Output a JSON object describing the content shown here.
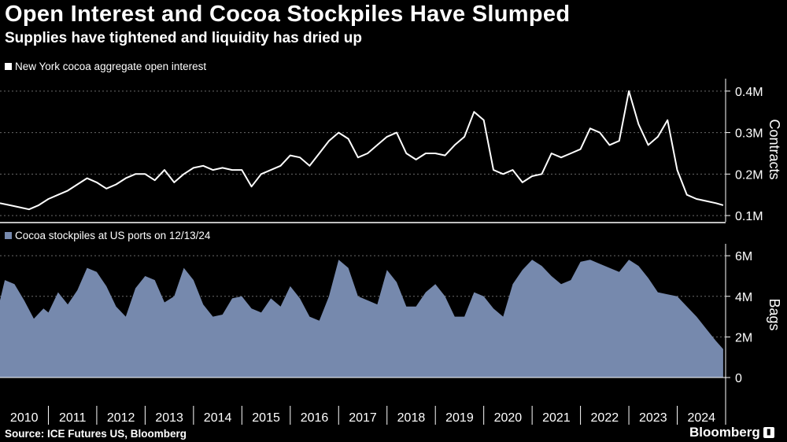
{
  "header": {
    "title": "Open Interest and Cocoa Stockpiles Have Slumped",
    "subtitle": "Supplies have tightened and liquidity has dried up"
  },
  "colors": {
    "background": "#000000",
    "line": "#ffffff",
    "area": "#7689ad",
    "grid": "#6a6a6a"
  },
  "chart_data": [
    {
      "type": "line",
      "series": [
        {
          "name": "New York cocoa aggregate open interest",
          "x": [
            2010.0,
            2010.2,
            2010.4,
            2010.6,
            2010.8,
            2011.0,
            2011.2,
            2011.4,
            2011.6,
            2011.8,
            2012.0,
            2012.2,
            2012.4,
            2012.6,
            2012.8,
            2013.0,
            2013.2,
            2013.4,
            2013.6,
            2013.8,
            2014.0,
            2014.2,
            2014.4,
            2014.6,
            2014.8,
            2015.0,
            2015.2,
            2015.4,
            2015.6,
            2015.8,
            2016.0,
            2016.2,
            2016.4,
            2016.6,
            2016.8,
            2017.0,
            2017.2,
            2017.4,
            2017.6,
            2017.8,
            2018.0,
            2018.2,
            2018.4,
            2018.6,
            2018.8,
            2019.0,
            2019.2,
            2019.4,
            2019.6,
            2019.8,
            2020.0,
            2020.2,
            2020.4,
            2020.6,
            2020.8,
            2021.0,
            2021.2,
            2021.4,
            2021.6,
            2021.8,
            2022.0,
            2022.2,
            2022.4,
            2022.6,
            2022.8,
            2023.0,
            2023.2,
            2023.4,
            2023.6,
            2023.8,
            2024.0,
            2024.2,
            2024.4,
            2024.6,
            2024.8,
            2024.95
          ],
          "y": [
            0.13,
            0.125,
            0.12,
            0.115,
            0.125,
            0.14,
            0.15,
            0.16,
            0.175,
            0.19,
            0.18,
            0.165,
            0.175,
            0.19,
            0.2,
            0.2,
            0.185,
            0.21,
            0.18,
            0.2,
            0.215,
            0.22,
            0.21,
            0.215,
            0.21,
            0.21,
            0.17,
            0.2,
            0.21,
            0.22,
            0.245,
            0.24,
            0.22,
            0.25,
            0.28,
            0.3,
            0.285,
            0.24,
            0.25,
            0.27,
            0.29,
            0.3,
            0.25,
            0.235,
            0.25,
            0.25,
            0.245,
            0.27,
            0.29,
            0.35,
            0.33,
            0.21,
            0.2,
            0.21,
            0.18,
            0.195,
            0.2,
            0.25,
            0.24,
            0.25,
            0.26,
            0.31,
            0.3,
            0.27,
            0.28,
            0.4,
            0.32,
            0.27,
            0.29,
            0.33,
            0.21,
            0.15,
            0.14,
            0.135,
            0.13,
            0.125
          ]
        }
      ],
      "ylabel": "Contracts",
      "yticks": [
        "0.1M",
        "0.2M",
        "0.3M",
        "0.4M"
      ],
      "ytick_values": [
        0.1,
        0.2,
        0.3,
        0.4
      ],
      "ylim": [
        0.085,
        0.43
      ],
      "xlim": [
        2010.0,
        2025.0
      ],
      "legend_position": "top-left",
      "grid": true
    },
    {
      "type": "area",
      "series": [
        {
          "name": "Cocoa stockpiles at US ports on 12/13/24",
          "x": [
            2010.0,
            2010.1,
            2010.3,
            2010.5,
            2010.7,
            2010.9,
            2011.0,
            2011.2,
            2011.4,
            2011.6,
            2011.8,
            2012.0,
            2012.2,
            2012.4,
            2012.6,
            2012.8,
            2013.0,
            2013.2,
            2013.4,
            2013.6,
            2013.8,
            2014.0,
            2014.2,
            2014.4,
            2014.6,
            2014.8,
            2015.0,
            2015.2,
            2015.4,
            2015.6,
            2015.8,
            2016.0,
            2016.2,
            2016.4,
            2016.6,
            2016.8,
            2017.0,
            2017.2,
            2017.4,
            2017.6,
            2017.8,
            2018.0,
            2018.2,
            2018.4,
            2018.6,
            2018.8,
            2019.0,
            2019.2,
            2019.4,
            2019.6,
            2019.8,
            2020.0,
            2020.2,
            2020.4,
            2020.6,
            2020.8,
            2021.0,
            2021.2,
            2021.4,
            2021.6,
            2021.8,
            2022.0,
            2022.2,
            2022.4,
            2022.6,
            2022.8,
            2023.0,
            2023.2,
            2023.4,
            2023.6,
            2023.8,
            2024.0,
            2024.2,
            2024.4,
            2024.6,
            2024.8,
            2024.95
          ],
          "y": [
            3.8,
            4.8,
            4.6,
            3.8,
            2.9,
            3.4,
            3.2,
            4.2,
            3.6,
            4.3,
            5.4,
            5.2,
            4.5,
            3.5,
            3.0,
            4.4,
            5.0,
            4.8,
            3.7,
            4.0,
            5.4,
            4.8,
            3.6,
            3.0,
            3.1,
            3.9,
            4.0,
            3.4,
            3.2,
            3.9,
            3.5,
            4.5,
            3.9,
            3.0,
            2.8,
            4.0,
            5.8,
            5.4,
            4.0,
            3.8,
            3.6,
            5.3,
            4.7,
            3.5,
            3.5,
            4.2,
            4.6,
            4.0,
            3.0,
            3.0,
            4.2,
            4.0,
            3.4,
            3.0,
            4.6,
            5.3,
            5.8,
            5.5,
            5.0,
            4.6,
            4.8,
            5.7,
            5.8,
            5.6,
            5.4,
            5.2,
            5.8,
            5.5,
            4.9,
            4.2,
            4.1,
            4.0,
            3.5,
            3.0,
            2.4,
            1.8,
            1.4
          ],
          "unit": "Bags"
        }
      ],
      "ylabel": "Bags",
      "yticks": [
        "0",
        "2M",
        "4M",
        "6M"
      ],
      "ytick_values": [
        0,
        2,
        4,
        6
      ],
      "ylim": [
        0,
        6.2
      ],
      "xlim": [
        2010.0,
        2025.0
      ],
      "xticks": [
        "2010",
        "2011",
        "2012",
        "2013",
        "2014",
        "2015",
        "2016",
        "2017",
        "2018",
        "2019",
        "2020",
        "2021",
        "2022",
        "2023",
        "2024"
      ],
      "legend_position": "top-left",
      "grid": true
    }
  ],
  "footer": {
    "source": "Source: ICE Futures US, Bloomberg",
    "logo": "Bloomberg"
  }
}
